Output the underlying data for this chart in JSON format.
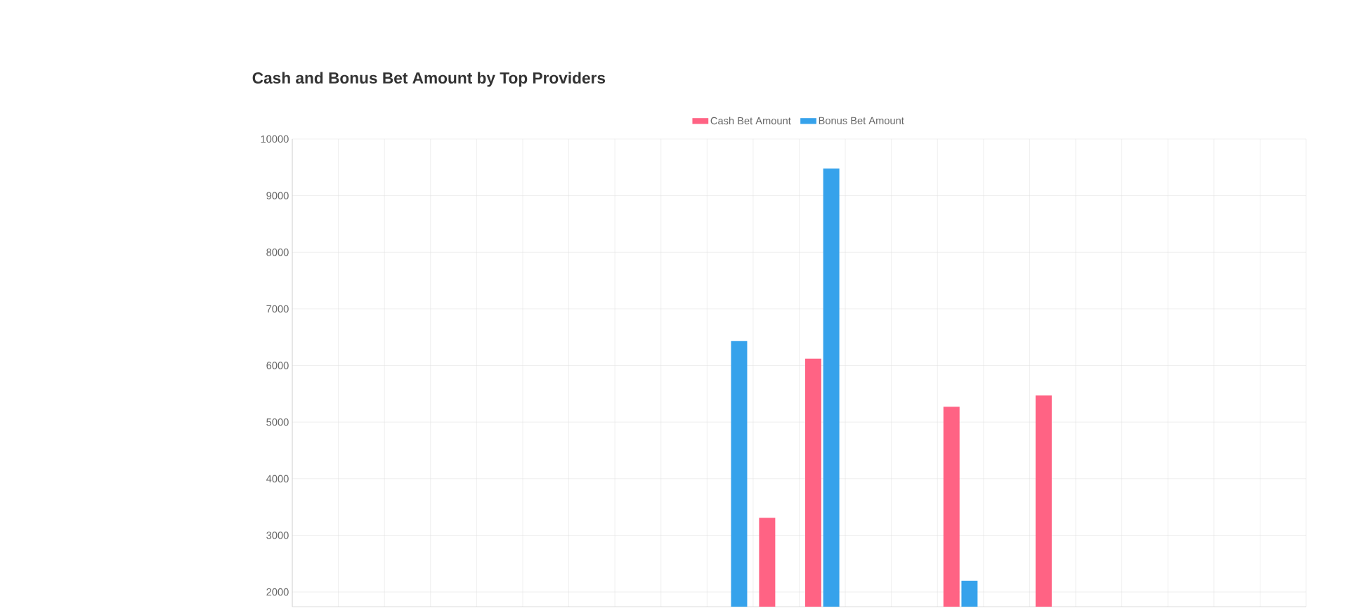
{
  "chart_data": {
    "type": "bar",
    "title": "Cash and Bonus Bet Amount by Top Providers",
    "categories": [
      null,
      null,
      null,
      null,
      null,
      null,
      null,
      null,
      null,
      null,
      null,
      null,
      null,
      null,
      null,
      null,
      null,
      null,
      null,
      null,
      null,
      null
    ],
    "series": [
      {
        "name": "Cash Bet Amount",
        "color": "#ff6384",
        "values": [
          null,
          null,
          null,
          null,
          null,
          null,
          null,
          null,
          null,
          null,
          3310,
          6120,
          null,
          null,
          5270,
          null,
          5470,
          null,
          null,
          null,
          null,
          null
        ]
      },
      {
        "name": "Bonus Bet Amount",
        "color": "#36a2eb",
        "values": [
          null,
          null,
          null,
          null,
          null,
          null,
          null,
          null,
          null,
          6430,
          null,
          9480,
          null,
          null,
          2200,
          null,
          null,
          null,
          null,
          null,
          null,
          null
        ]
      }
    ],
    "ylim": [
      1740,
      10000
    ],
    "yticks": [
      2000,
      3000,
      4000,
      5000,
      6000,
      7000,
      8000,
      9000,
      10000
    ],
    "grid": true,
    "legend": "top"
  }
}
